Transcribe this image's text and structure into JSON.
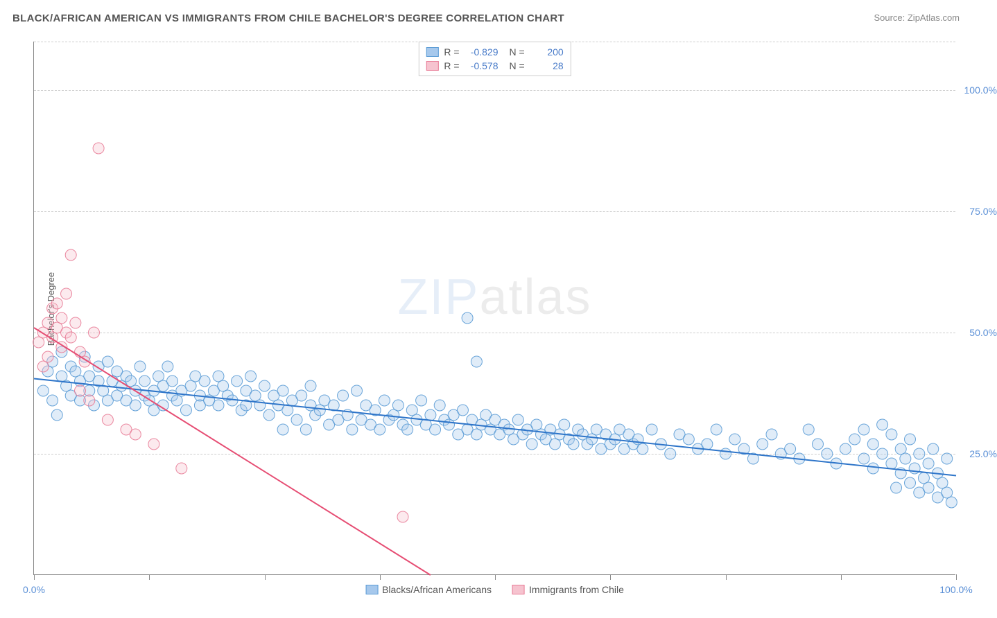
{
  "title": "BLACK/AFRICAN AMERICAN VS IMMIGRANTS FROM CHILE BACHELOR'S DEGREE CORRELATION CHART",
  "source": "Source: ZipAtlas.com",
  "watermark_zip": "ZIP",
  "watermark_atlas": "atlas",
  "y_title": "Bachelor's Degree",
  "chart": {
    "type": "scatter",
    "xlim": [
      0,
      100
    ],
    "ylim": [
      0,
      110
    ],
    "x_ticks": [
      0,
      12.5,
      25,
      37.5,
      50,
      62.5,
      75,
      87.5,
      100
    ],
    "x_tick_labels": {
      "0": "0.0%",
      "100": "100.0%"
    },
    "y_gridlines": [
      25,
      50,
      75,
      100,
      110
    ],
    "y_tick_labels": {
      "25": "25.0%",
      "50": "50.0%",
      "75": "75.0%",
      "100": "100.0%"
    },
    "background_color": "#ffffff",
    "grid_color": "#cccccc",
    "axis_color": "#888888",
    "tick_label_color": "#5a8fd6",
    "marker_radius": 8,
    "marker_fill_opacity": 0.35,
    "marker_stroke_opacity": 0.9,
    "line_width": 2,
    "series": [
      {
        "name": "Blacks/African Americans",
        "color_fill": "#a6c8ec",
        "color_stroke": "#5a9bd5",
        "line_color": "#2e75c9",
        "R": "-0.829",
        "N": "200",
        "trend": {
          "x1": 0,
          "y1": 40.5,
          "x2": 100,
          "y2": 20.5
        },
        "points": [
          [
            1,
            38
          ],
          [
            1.5,
            42
          ],
          [
            2,
            36
          ],
          [
            2,
            44
          ],
          [
            2.5,
            33
          ],
          [
            3,
            41
          ],
          [
            3,
            46
          ],
          [
            3.5,
            39
          ],
          [
            4,
            37
          ],
          [
            4,
            43
          ],
          [
            4.5,
            42
          ],
          [
            5,
            40
          ],
          [
            5,
            36
          ],
          [
            5.5,
            45
          ],
          [
            6,
            38
          ],
          [
            6,
            41
          ],
          [
            6.5,
            35
          ],
          [
            7,
            40
          ],
          [
            7,
            43
          ],
          [
            7.5,
            38
          ],
          [
            8,
            36
          ],
          [
            8,
            44
          ],
          [
            8.5,
            40
          ],
          [
            9,
            37
          ],
          [
            9,
            42
          ],
          [
            9.5,
            39
          ],
          [
            10,
            36
          ],
          [
            10,
            41
          ],
          [
            10.5,
            40
          ],
          [
            11,
            38
          ],
          [
            11,
            35
          ],
          [
            11.5,
            43
          ],
          [
            12,
            37
          ],
          [
            12,
            40
          ],
          [
            12.5,
            36
          ],
          [
            13,
            38
          ],
          [
            13,
            34
          ],
          [
            13.5,
            41
          ],
          [
            14,
            39
          ],
          [
            14,
            35
          ],
          [
            14.5,
            43
          ],
          [
            15,
            37
          ],
          [
            15,
            40
          ],
          [
            15.5,
            36
          ],
          [
            16,
            38
          ],
          [
            16.5,
            34
          ],
          [
            17,
            39
          ],
          [
            17.5,
            41
          ],
          [
            18,
            37
          ],
          [
            18,
            35
          ],
          [
            18.5,
            40
          ],
          [
            19,
            36
          ],
          [
            19.5,
            38
          ],
          [
            20,
            41
          ],
          [
            20,
            35
          ],
          [
            20.5,
            39
          ],
          [
            21,
            37
          ],
          [
            21.5,
            36
          ],
          [
            22,
            40
          ],
          [
            22.5,
            34
          ],
          [
            23,
            38
          ],
          [
            23,
            35
          ],
          [
            23.5,
            41
          ],
          [
            24,
            37
          ],
          [
            24.5,
            35
          ],
          [
            25,
            39
          ],
          [
            25.5,
            33
          ],
          [
            26,
            37
          ],
          [
            26.5,
            35
          ],
          [
            27,
            30
          ],
          [
            27,
            38
          ],
          [
            27.5,
            34
          ],
          [
            28,
            36
          ],
          [
            28.5,
            32
          ],
          [
            29,
            37
          ],
          [
            29.5,
            30
          ],
          [
            30,
            35
          ],
          [
            30,
            39
          ],
          [
            30.5,
            33
          ],
          [
            31,
            34
          ],
          [
            31.5,
            36
          ],
          [
            32,
            31
          ],
          [
            32.5,
            35
          ],
          [
            33,
            32
          ],
          [
            33.5,
            37
          ],
          [
            34,
            33
          ],
          [
            34.5,
            30
          ],
          [
            35,
            38
          ],
          [
            35.5,
            32
          ],
          [
            36,
            35
          ],
          [
            36.5,
            31
          ],
          [
            37,
            34
          ],
          [
            37.5,
            30
          ],
          [
            38,
            36
          ],
          [
            38.5,
            32
          ],
          [
            39,
            33
          ],
          [
            39.5,
            35
          ],
          [
            40,
            31
          ],
          [
            40.5,
            30
          ],
          [
            41,
            34
          ],
          [
            41.5,
            32
          ],
          [
            42,
            36
          ],
          [
            42.5,
            31
          ],
          [
            43,
            33
          ],
          [
            43.5,
            30
          ],
          [
            44,
            35
          ],
          [
            44.5,
            32
          ],
          [
            45,
            31
          ],
          [
            45.5,
            33
          ],
          [
            46,
            29
          ],
          [
            46.5,
            34
          ],
          [
            47,
            53
          ],
          [
            47,
            30
          ],
          [
            47.5,
            32
          ],
          [
            48,
            44
          ],
          [
            48,
            29
          ],
          [
            48.5,
            31
          ],
          [
            49,
            33
          ],
          [
            49.5,
            30
          ],
          [
            50,
            32
          ],
          [
            50.5,
            29
          ],
          [
            51,
            31
          ],
          [
            51.5,
            30
          ],
          [
            52,
            28
          ],
          [
            52.5,
            32
          ],
          [
            53,
            29
          ],
          [
            53.5,
            30
          ],
          [
            54,
            27
          ],
          [
            54.5,
            31
          ],
          [
            55,
            29
          ],
          [
            55.5,
            28
          ],
          [
            56,
            30
          ],
          [
            56.5,
            27
          ],
          [
            57,
            29
          ],
          [
            57.5,
            31
          ],
          [
            58,
            28
          ],
          [
            58.5,
            27
          ],
          [
            59,
            30
          ],
          [
            59.5,
            29
          ],
          [
            60,
            27
          ],
          [
            60.5,
            28
          ],
          [
            61,
            30
          ],
          [
            61.5,
            26
          ],
          [
            62,
            29
          ],
          [
            62.5,
            27
          ],
          [
            63,
            28
          ],
          [
            63.5,
            30
          ],
          [
            64,
            26
          ],
          [
            64.5,
            29
          ],
          [
            65,
            27
          ],
          [
            65.5,
            28
          ],
          [
            66,
            26
          ],
          [
            67,
            30
          ],
          [
            68,
            27
          ],
          [
            69,
            25
          ],
          [
            70,
            29
          ],
          [
            71,
            28
          ],
          [
            72,
            26
          ],
          [
            73,
            27
          ],
          [
            74,
            30
          ],
          [
            75,
            25
          ],
          [
            76,
            28
          ],
          [
            77,
            26
          ],
          [
            78,
            24
          ],
          [
            79,
            27
          ],
          [
            80,
            29
          ],
          [
            81,
            25
          ],
          [
            82,
            26
          ],
          [
            83,
            24
          ],
          [
            84,
            30
          ],
          [
            85,
            27
          ],
          [
            86,
            25
          ],
          [
            87,
            23
          ],
          [
            88,
            26
          ],
          [
            89,
            28
          ],
          [
            90,
            24
          ],
          [
            90,
            30
          ],
          [
            91,
            22
          ],
          [
            91,
            27
          ],
          [
            92,
            31
          ],
          [
            92,
            25
          ],
          [
            93,
            23
          ],
          [
            93,
            29
          ],
          [
            93.5,
            18
          ],
          [
            94,
            26
          ],
          [
            94,
            21
          ],
          [
            94.5,
            24
          ],
          [
            95,
            19
          ],
          [
            95,
            28
          ],
          [
            95.5,
            22
          ],
          [
            96,
            17
          ],
          [
            96,
            25
          ],
          [
            96.5,
            20
          ],
          [
            97,
            23
          ],
          [
            97,
            18
          ],
          [
            97.5,
            26
          ],
          [
            98,
            16
          ],
          [
            98,
            21
          ],
          [
            98.5,
            19
          ],
          [
            99,
            24
          ],
          [
            99,
            17
          ],
          [
            99.5,
            15
          ]
        ]
      },
      {
        "name": "Immigrants from Chile",
        "color_fill": "#f6c3cf",
        "color_stroke": "#e87b96",
        "line_color": "#e64d73",
        "R": "-0.578",
        "N": "28",
        "trend": {
          "x1": 0,
          "y1": 51,
          "x2": 43,
          "y2": 0
        },
        "points": [
          [
            0.5,
            48
          ],
          [
            1,
            50
          ],
          [
            1,
            43
          ],
          [
            1.5,
            52
          ],
          [
            1.5,
            45
          ],
          [
            2,
            55
          ],
          [
            2,
            49
          ],
          [
            2.5,
            56
          ],
          [
            2.5,
            51
          ],
          [
            3,
            53
          ],
          [
            3,
            47
          ],
          [
            3.5,
            58
          ],
          [
            3.5,
            50
          ],
          [
            4,
            66
          ],
          [
            4,
            49
          ],
          [
            4.5,
            52
          ],
          [
            5,
            46
          ],
          [
            5,
            38
          ],
          [
            5.5,
            44
          ],
          [
            6,
            36
          ],
          [
            6.5,
            50
          ],
          [
            7,
            88
          ],
          [
            8,
            32
          ],
          [
            10,
            30
          ],
          [
            11,
            29
          ],
          [
            13,
            27
          ],
          [
            16,
            22
          ],
          [
            40,
            12
          ]
        ]
      }
    ]
  },
  "legend_bottom": [
    {
      "label": "Blacks/African Americans",
      "fill": "#a6c8ec",
      "stroke": "#5a9bd5"
    },
    {
      "label": "Immigrants from Chile",
      "fill": "#f6c3cf",
      "stroke": "#e87b96"
    }
  ]
}
